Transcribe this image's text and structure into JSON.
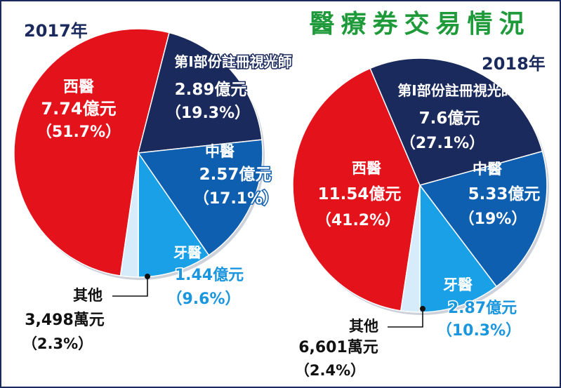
{
  "title": "醫療券交易情況",
  "colors": {
    "western": "#e3121b",
    "optometrist": "#1b2a5c",
    "chinese": "#0f5fb0",
    "dental": "#1aa0e6",
    "others": "#d6ecfb",
    "title": "#1e9a3a",
    "frame": "#1b2a5c",
    "dental_text": "#1a96de"
  },
  "chart_data": [
    {
      "type": "pie",
      "year_label": "2017年",
      "unit_note": "億元",
      "slices": [
        {
          "name": "西醫",
          "amount": "7.74億元",
          "percent_label": "（51.7%）",
          "value": 51.7
        },
        {
          "name": "第Ⅰ部份註冊視光師",
          "amount": "2.89億元",
          "percent_label": "（19.3%）",
          "value": 19.3
        },
        {
          "name": "中醫",
          "amount": "2.57億元",
          "percent_label": "（17.1%）",
          "value": 17.1
        },
        {
          "name": "牙醫",
          "amount": "1.44億元",
          "percent_label": "（9.6%）",
          "value": 9.6
        },
        {
          "name": "其他",
          "amount": "3,498萬元",
          "percent_label": "（2.3%）",
          "value": 2.3
        }
      ]
    },
    {
      "type": "pie",
      "year_label": "2018年",
      "unit_note": "億元",
      "slices": [
        {
          "name": "西醫",
          "amount": "11.54億元",
          "percent_label": "（41.2%）",
          "value": 41.2
        },
        {
          "name": "第Ⅰ部份註冊視光師",
          "amount": "7.6億元",
          "percent_label": "（27.1%）",
          "value": 27.1
        },
        {
          "name": "中醫",
          "amount": "5.33億元",
          "percent_label": "（19%）",
          "value": 19
        },
        {
          "name": "牙醫",
          "amount": "2.87億元",
          "percent_label": "（10.3%）",
          "value": 10.3
        },
        {
          "name": "其他",
          "amount": "6,601萬元",
          "percent_label": "（2.4%）",
          "value": 2.4
        }
      ]
    }
  ]
}
